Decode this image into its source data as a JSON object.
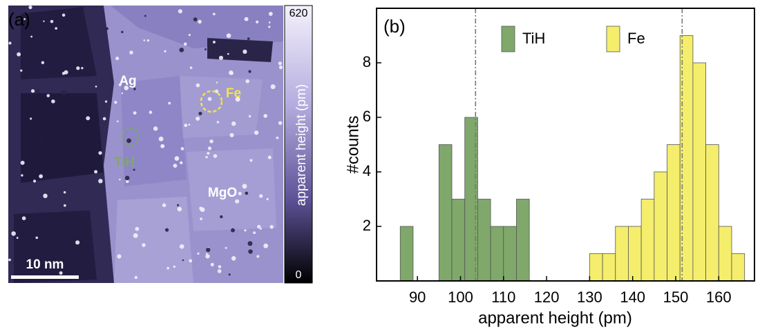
{
  "panel_a": {
    "label": "(a)",
    "annotations": [
      "Ag",
      "Fe",
      "TiH",
      "MgO"
    ],
    "scale_bar": "10 nm",
    "colorbar": {
      "label": "apparent height (pm)",
      "max": 620,
      "min": 0
    }
  },
  "chart_data": {
    "type": "histogram",
    "panel_label": "(b)",
    "x_label": "apparent height (pm)",
    "y_label": "#counts",
    "xlim": [
      80.5,
      168.3
    ],
    "xticks": [
      90,
      100,
      110,
      120,
      130,
      140,
      150,
      160
    ],
    "ylim": [
      0,
      10
    ],
    "yticks": [
      2,
      4,
      6,
      8
    ],
    "series": [
      {
        "name": "TiH",
        "color": "#7fa86a",
        "bins": [
          86,
          89,
          92,
          95,
          98,
          101,
          104,
          107,
          110,
          113,
          116
        ],
        "values": [
          2,
          0,
          0,
          5,
          3,
          6,
          3,
          2,
          2,
          3
        ]
      },
      {
        "name": "Fe",
        "color": "#f4ee6c",
        "bins": [
          130,
          133,
          136,
          139,
          142,
          145,
          148,
          151,
          154,
          157,
          160,
          163,
          166
        ],
        "values": [
          1,
          1,
          2,
          2,
          3,
          4,
          5,
          9,
          8,
          5,
          2,
          1
        ]
      }
    ],
    "reference_lines": [
      103.5,
      151.5
    ]
  }
}
